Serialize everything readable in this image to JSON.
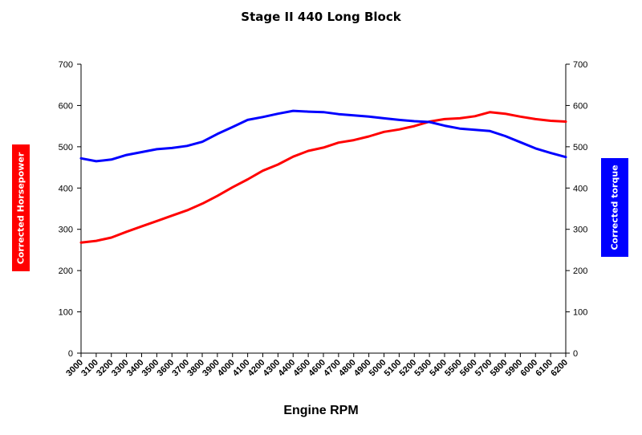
{
  "chart_data": {
    "type": "line",
    "title": "Stage II 440 Long Block",
    "xlabel": "Engine RPM",
    "ylabel_left": "Corrected Horsepower",
    "ylabel_right": "Corrected torque",
    "ylim": [
      0,
      700
    ],
    "y2lim": [
      0,
      700
    ],
    "yticks": [
      0,
      100,
      200,
      300,
      400,
      500,
      600,
      700
    ],
    "grid": false,
    "x": [
      3000,
      3100,
      3200,
      3300,
      3400,
      3500,
      3600,
      3700,
      3800,
      3900,
      4000,
      4100,
      4200,
      4300,
      4400,
      4500,
      4600,
      4700,
      4800,
      4900,
      5000,
      5100,
      5200,
      5300,
      5400,
      5500,
      5600,
      5700,
      5800,
      5900,
      6000,
      6100,
      6200
    ],
    "series": [
      {
        "name": "Corrected Horsepower",
        "color": "#ff0000",
        "axis": "left",
        "values": [
          268,
          272,
          280,
          294,
          307,
          320,
          333,
          346,
          362,
          381,
          402,
          421,
          442,
          457,
          476,
          490,
          498,
          510,
          516,
          525,
          536,
          542,
          550,
          561,
          567,
          569,
          574,
          584,
          580,
          573,
          567,
          563,
          561
        ]
      },
      {
        "name": "Corrected torque",
        "color": "#0000ff",
        "axis": "right",
        "values": [
          472,
          465,
          469,
          480,
          487,
          494,
          497,
          502,
          512,
          531,
          548,
          565,
          572,
          580,
          587,
          585,
          584,
          579,
          576,
          573,
          569,
          565,
          562,
          560,
          551,
          544,
          541,
          538,
          526,
          511,
          496,
          485,
          475
        ]
      }
    ]
  }
}
